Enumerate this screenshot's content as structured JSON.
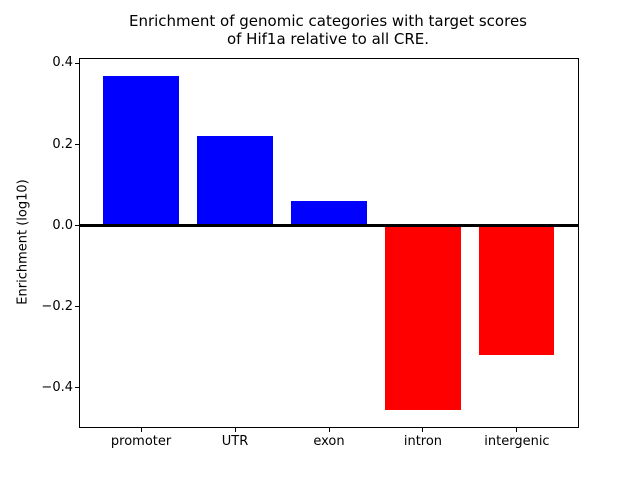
{
  "figure": {
    "title": "Enrichment of genomic categories with target scores\nof Hif1a relative to all CRE.",
    "ylabel": "Enrichment (log10)"
  },
  "chart_data": {
    "type": "bar",
    "title": "Enrichment of genomic categories with target scores of Hif1a relative to all CRE.",
    "xlabel": "",
    "ylabel": "Enrichment (log10)",
    "categories": [
      "promoter",
      "UTR",
      "exon",
      "intron",
      "intergenic"
    ],
    "values": [
      0.37,
      0.22,
      0.06,
      -0.456,
      -0.32
    ],
    "positive_color": "#0000ff",
    "negative_color": "#ff0000",
    "bar_width": 0.8,
    "xlim": [
      -0.65,
      4.65
    ],
    "ylim": [
      -0.497,
      0.411
    ],
    "yticks": [
      {
        "value": 0.4,
        "label": "0.4"
      },
      {
        "value": 0.2,
        "label": "0.2"
      },
      {
        "value": 0.0,
        "label": "0.0"
      },
      {
        "value": -0.2,
        "label": "−0.2"
      },
      {
        "value": -0.4,
        "label": "−0.4"
      }
    ],
    "grid": false,
    "legend_position": "none",
    "zero_line": true
  }
}
